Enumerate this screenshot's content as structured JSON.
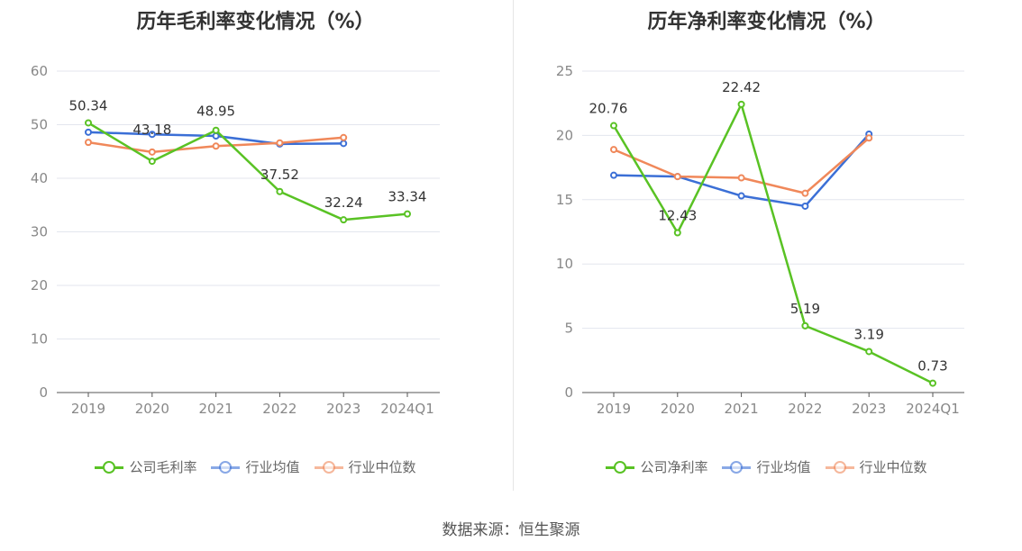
{
  "source_label": "数据来源：恒生聚源",
  "colors": {
    "company": "#59c224",
    "industry_avg": "#3b6fd6",
    "industry_median": "#f0885a",
    "grid": "#e3e6ee",
    "axis": "#555555",
    "tick_text": "#888888"
  },
  "chart_data": [
    {
      "type": "line",
      "title": "历年毛利率变化情况（%）",
      "categories": [
        "2019",
        "2020",
        "2021",
        "2022",
        "2023",
        "2024Q1"
      ],
      "ylim": [
        0,
        60
      ],
      "yticks": [
        0,
        10,
        20,
        30,
        40,
        50,
        60
      ],
      "grid": true,
      "legend_position": "bottom",
      "series": [
        {
          "name": "公司毛利率",
          "key": "company",
          "values": [
            50.34,
            43.18,
            48.95,
            37.52,
            32.24,
            33.34
          ],
          "labels": [
            "50.34",
            "43.18",
            "48.95",
            "37.52",
            "32.24",
            "33.34"
          ]
        },
        {
          "name": "行业均值",
          "key": "industry_avg",
          "values": [
            48.6,
            48.2,
            47.9,
            46.4,
            46.5,
            null
          ]
        },
        {
          "name": "行业中位数",
          "key": "industry_median",
          "values": [
            46.7,
            44.9,
            46.0,
            46.6,
            47.6,
            null
          ]
        }
      ]
    },
    {
      "type": "line",
      "title": "历年净利率变化情况（%）",
      "categories": [
        "2019",
        "2020",
        "2021",
        "2022",
        "2023",
        "2024Q1"
      ],
      "ylim": [
        0,
        25
      ],
      "yticks": [
        0,
        5,
        10,
        15,
        20,
        25
      ],
      "grid": true,
      "legend_position": "bottom",
      "series": [
        {
          "name": "公司净利率",
          "key": "company",
          "values": [
            20.76,
            12.43,
            22.42,
            5.19,
            3.19,
            0.73
          ],
          "labels": [
            "20.76",
            "12.43",
            "22.42",
            "5.19",
            "3.19",
            "0.73"
          ]
        },
        {
          "name": "行业均值",
          "key": "industry_avg",
          "values": [
            16.9,
            16.8,
            15.3,
            14.5,
            20.1,
            null
          ]
        },
        {
          "name": "行业中位数",
          "key": "industry_median",
          "values": [
            18.9,
            16.8,
            16.7,
            15.5,
            19.8,
            null
          ]
        }
      ]
    }
  ]
}
